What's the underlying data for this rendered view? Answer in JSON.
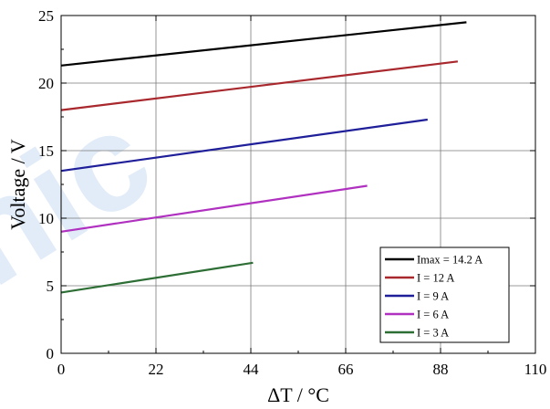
{
  "chart_data": {
    "type": "line",
    "title": "",
    "xlabel": "ΔT / °C",
    "ylabel": "Voltage / V",
    "xlim": [
      0,
      110
    ],
    "ylim": [
      0,
      25
    ],
    "xticks": [
      0,
      22,
      44,
      66,
      88,
      110
    ],
    "yticks": [
      0,
      5,
      10,
      15,
      20,
      25
    ],
    "grid": true,
    "legend_position": "bottom-right",
    "series": [
      {
        "name": "Imax = 14.2 A",
        "color": "#000000",
        "x": [
          0,
          94
        ],
        "y": [
          21.3,
          24.5
        ]
      },
      {
        "name": "I = 12 A",
        "color": "#a8282d",
        "x": [
          0,
          92
        ],
        "y": [
          18.0,
          21.6
        ]
      },
      {
        "name": "I = 9 A",
        "color": "#1f1f9a",
        "x": [
          0,
          85
        ],
        "y": [
          13.5,
          17.3
        ]
      },
      {
        "name": "I = 6 A",
        "color": "#b030c0",
        "x": [
          0,
          71
        ],
        "y": [
          9.0,
          12.4
        ]
      },
      {
        "name": "I = 3 A",
        "color": "#2d6e35",
        "x": [
          0,
          44.5
        ],
        "y": [
          4.5,
          6.7
        ]
      }
    ]
  }
}
